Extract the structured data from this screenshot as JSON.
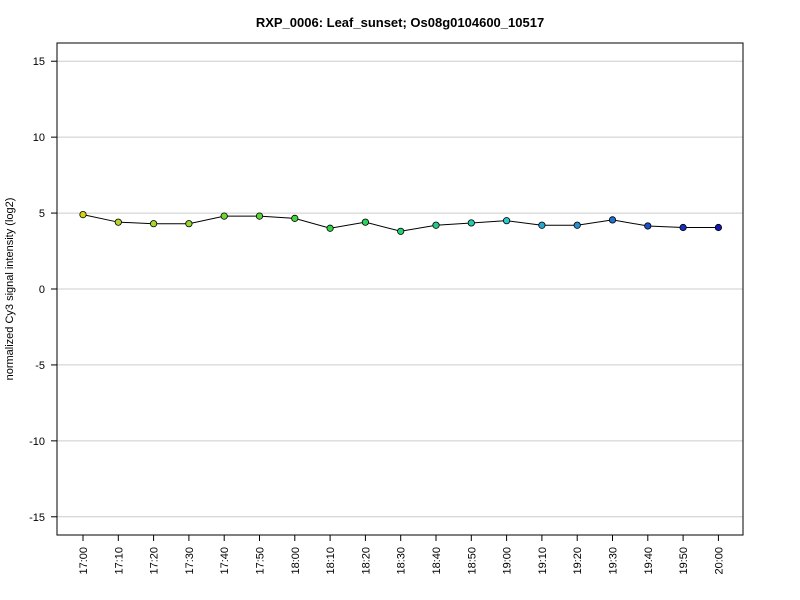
{
  "chart_data": {
    "type": "line",
    "title": "RXP_0006: Leaf_sunset; Os08g0104600_10517",
    "xlabel": "",
    "ylabel": "normalized Cy3 signal intensity (log2)",
    "ylim": [
      -16.2,
      16.2
    ],
    "yticks": [
      -15,
      -10,
      -5,
      0,
      5,
      10,
      15
    ],
    "grid": true,
    "categories": [
      "17:00",
      "17:10",
      "17:20",
      "17:30",
      "17:40",
      "17:50",
      "18:00",
      "18:10",
      "18:20",
      "18:30",
      "18:40",
      "18:50",
      "19:00",
      "19:10",
      "19:20",
      "19:30",
      "19:40",
      "19:50",
      "20:00"
    ],
    "series": [
      {
        "values": [
          4.9,
          4.4,
          4.3,
          4.3,
          4.8,
          4.8,
          4.65,
          4.0,
          4.4,
          3.8,
          4.2,
          4.35,
          4.5,
          4.2,
          4.2,
          4.55,
          4.15,
          4.05,
          4.05
        ],
        "point_colors": [
          "#d4d414",
          "#b8d42a",
          "#a6d82e",
          "#92d830",
          "#6cd83a",
          "#5ad63a",
          "#46d43c",
          "#30d44a",
          "#28d45c",
          "#24d070",
          "#22cc88",
          "#22ccac",
          "#28c8cc",
          "#26a8d0",
          "#2690d0",
          "#2270d0",
          "#1a50c8",
          "#1430bc",
          "#1018b0"
        ]
      }
    ]
  }
}
